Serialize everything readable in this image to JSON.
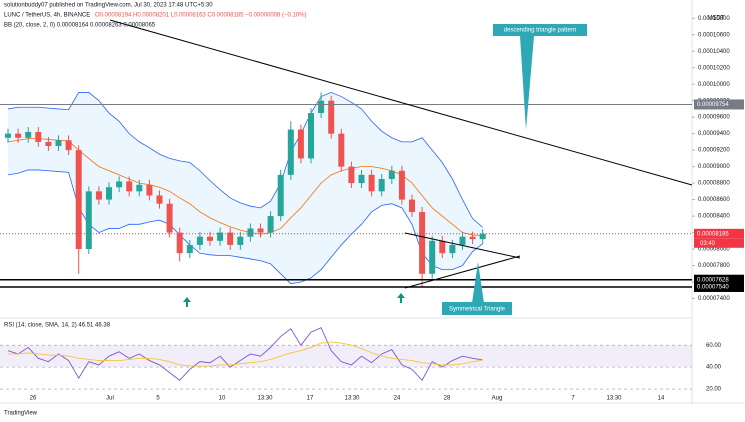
{
  "header": {
    "published": "solutionbuddy07 published on TradingView.com, Jul 30, 2023 17:48 UTC+5:30",
    "brand": "TradingView"
  },
  "chart_data": [
    {
      "type": "candlestick",
      "title": "LUNC / TetherUS, 4h, BINANCE",
      "ohlc_label": "O0.00008194 H0.00008201 L0.00008163 C0.00008185 −0.00000008 (−0.10%)",
      "bb_legend": "BB (20, close, 2, 0) 0.00008164 0.00008263 0.00008065",
      "currency": "USDT",
      "countdown": "03:40",
      "up_color": "#26a69a",
      "down_color": "#ef5350",
      "open": [
        9.35e-05,
        9.4e-05,
        9.35e-05,
        9.42e-05,
        9.3e-05,
        9.25e-05,
        9.32e-05,
        9.2e-05,
        8e-05,
        8.7e-05,
        8.6e-05,
        8.75e-05,
        8.82e-05,
        8.7e-05,
        8.78e-05,
        8.65e-05,
        8.55e-05,
        8.2e-05,
        7.95e-05,
        8.05e-05,
        8.15e-05,
        8.1e-05,
        8.2e-05,
        8.05e-05,
        8.15e-05,
        8.25e-05,
        8.2e-05,
        8.4e-05,
        8.9e-05,
        9.45e-05,
        9.1e-05,
        9.65e-05,
        9.8e-05,
        9.4e-05,
        9e-05,
        8.8e-05,
        8.9e-05,
        8.7e-05,
        8.85e-05,
        8.95e-05,
        8.6e-05,
        8.45e-05,
        7.7e-05,
        8.1e-05,
        7.95e-05,
        8.05e-05,
        8.15e-05,
        8.12e-05
      ],
      "high": [
        9.46e-05,
        9.46e-05,
        9.48e-05,
        9.48e-05,
        9.36e-05,
        9.38e-05,
        9.38e-05,
        9.26e-05,
        8.76e-05,
        8.76e-05,
        8.81e-05,
        8.88e-05,
        8.88e-05,
        8.84e-05,
        8.84e-05,
        8.71e-05,
        8.61e-05,
        8.26e-05,
        8.11e-05,
        8.21e-05,
        8.21e-05,
        8.26e-05,
        8.26e-05,
        8.21e-05,
        8.31e-05,
        8.31e-05,
        8.46e-05,
        8.96e-05,
        9.55e-05,
        9.51e-05,
        9.71e-05,
        9.9e-05,
        9.86e-05,
        9.46e-05,
        9.06e-05,
        8.96e-05,
        8.96e-05,
        8.91e-05,
        9.01e-05,
        9.01e-05,
        8.66e-05,
        8.51e-05,
        8.16e-05,
        8.16e-05,
        8.11e-05,
        8.21e-05,
        8.21e-05,
        8.24e-05
      ],
      "low": [
        9.29e-05,
        9.29e-05,
        9.29e-05,
        9.24e-05,
        9.19e-05,
        9.19e-05,
        9.14e-05,
        7.7e-05,
        7.94e-05,
        8.54e-05,
        8.54e-05,
        8.69e-05,
        8.64e-05,
        8.64e-05,
        8.59e-05,
        8.49e-05,
        8.14e-05,
        7.85e-05,
        7.89e-05,
        7.99e-05,
        8.04e-05,
        8.04e-05,
        7.99e-05,
        7.99e-05,
        8.09e-05,
        8.14e-05,
        8.14e-05,
        8.34e-05,
        8.84e-05,
        9.04e-05,
        9.04e-05,
        9.59e-05,
        9.34e-05,
        8.94e-05,
        8.74e-05,
        8.74e-05,
        8.64e-05,
        8.64e-05,
        8.79e-05,
        8.54e-05,
        8.39e-05,
        7.54e-05,
        7.64e-05,
        7.89e-05,
        7.89e-05,
        7.99e-05,
        8.06e-05,
        8.06e-05
      ],
      "close": [
        9.4e-05,
        9.35e-05,
        9.42e-05,
        9.3e-05,
        9.25e-05,
        9.32e-05,
        9.2e-05,
        8e-05,
        8.7e-05,
        8.6e-05,
        8.75e-05,
        8.82e-05,
        8.7e-05,
        8.78e-05,
        8.65e-05,
        8.55e-05,
        8.2e-05,
        7.95e-05,
        8.05e-05,
        8.15e-05,
        8.1e-05,
        8.2e-05,
        8.05e-05,
        8.15e-05,
        8.25e-05,
        8.2e-05,
        8.4e-05,
        8.9e-05,
        9.45e-05,
        9.1e-05,
        9.65e-05,
        9.8e-05,
        9.4e-05,
        9e-05,
        8.8e-05,
        8.9e-05,
        8.7e-05,
        8.85e-05,
        8.95e-05,
        8.6e-05,
        8.45e-05,
        7.7e-05,
        8.1e-05,
        7.95e-05,
        8.05e-05,
        8.15e-05,
        8.12e-05,
        8.185e-05
      ],
      "bands": [
        {
          "color": "#ff6d00",
          "values": [
            9.3e-05,
            9.32e-05,
            9.34e-05,
            9.34e-05,
            9.33e-05,
            9.32e-05,
            9.31e-05,
            9.2e-05,
            9.1e-05,
            9e-05,
            8.95e-05,
            8.9e-05,
            8.85e-05,
            8.8e-05,
            8.78e-05,
            8.75e-05,
            8.7e-05,
            8.62e-05,
            8.55e-05,
            8.45e-05,
            8.38e-05,
            8.32e-05,
            8.27e-05,
            8.23e-05,
            8.2e-05,
            8.18e-05,
            8.2e-05,
            8.25e-05,
            8.38e-05,
            8.5e-05,
            8.65e-05,
            8.8e-05,
            8.9e-05,
            8.95e-05,
            8.98e-05,
            9e-05,
            9e-05,
            8.98e-05,
            8.95e-05,
            8.9e-05,
            8.8e-05,
            8.65e-05,
            8.5e-05,
            8.4e-05,
            8.3e-05,
            8.2e-05,
            8.17e-05,
            8.164e-05
          ]
        },
        {
          "color": "#2962ff",
          "values": [
            9.7e-05,
            9.72e-05,
            9.72e-05,
            9.72e-05,
            9.71e-05,
            9.7e-05,
            9.69e-05,
            9.9e-05,
            9.9e-05,
            9.8e-05,
            9.65e-05,
            9.55e-05,
            9.4e-05,
            9.3e-05,
            9.23e-05,
            9.15e-05,
            9.1e-05,
            9.07e-05,
            9.05e-05,
            8.95e-05,
            8.83e-05,
            8.72e-05,
            8.62e-05,
            8.56e-05,
            8.52e-05,
            8.5e-05,
            8.58e-05,
            8.8e-05,
            9.18e-05,
            9.4e-05,
            9.65e-05,
            9.85e-05,
            9.9e-05,
            9.85e-05,
            9.78e-05,
            9.7e-05,
            9.55e-05,
            9.43e-05,
            9.35e-05,
            9.3e-05,
            9.3e-05,
            9.35e-05,
            9.2e-05,
            9.05e-05,
            8.85e-05,
            8.6e-05,
            8.37e-05,
            8.263e-05
          ]
        },
        {
          "color": "#2962ff",
          "values": [
            8.9e-05,
            8.92e-05,
            8.96e-05,
            8.96e-05,
            8.95e-05,
            8.94e-05,
            8.93e-05,
            8.5e-05,
            8.3e-05,
            8.2e-05,
            8.25e-05,
            8.25e-05,
            8.3e-05,
            8.3e-05,
            8.33e-05,
            8.35e-05,
            8.3e-05,
            8.17e-05,
            8.05e-05,
            7.95e-05,
            7.93e-05,
            7.92e-05,
            7.92e-05,
            7.9e-05,
            7.88e-05,
            7.86e-05,
            7.82e-05,
            7.7e-05,
            7.58e-05,
            7.6e-05,
            7.65e-05,
            7.75e-05,
            7.9e-05,
            8.05e-05,
            8.18e-05,
            8.3e-05,
            8.45e-05,
            8.53e-05,
            8.55e-05,
            8.5e-05,
            8.3e-05,
            7.95e-05,
            7.8e-05,
            7.75e-05,
            7.75e-05,
            7.8e-05,
            7.97e-05,
            8.065e-05
          ]
        }
      ],
      "band_fill": "rgba(33,150,243,0.09)",
      "ylim": [
        7.2e-05,
        0.000109
      ],
      "yticks": [
        {
          "value": 7.4e-05,
          "label": "0.00007400"
        },
        {
          "value": 7.6e-05,
          "label": "0.00007600"
        },
        {
          "value": 7.8e-05,
          "label": "0.00007800"
        },
        {
          "value": 8e-05,
          "label": "0.00008000"
        },
        {
          "value": 8.2e-05,
          "label": "0.00008200"
        },
        {
          "value": 8.4e-05,
          "label": "0.00008400"
        },
        {
          "value": 8.6e-05,
          "label": "0.00008600"
        },
        {
          "value": 8.8e-05,
          "label": "0.00008800"
        },
        {
          "value": 9e-05,
          "label": "0.00009000"
        },
        {
          "value": 9.2e-05,
          "label": "0.00009200"
        },
        {
          "value": 9.4e-05,
          "label": "0.00009400"
        },
        {
          "value": 9.6e-05,
          "label": "0.00009600"
        },
        {
          "value": 9.8e-05,
          "label": "0.00009800"
        },
        {
          "value": 0.0001,
          "label": "0.00010000"
        },
        {
          "value": 0.000102,
          "label": "0.00010200"
        },
        {
          "value": 0.000104,
          "label": "0.00010400"
        },
        {
          "value": 0.000106,
          "label": "0.00010600"
        },
        {
          "value": 0.000108,
          "label": "0.00010800"
        }
      ],
      "levels": [
        {
          "value": 9.754e-05,
          "label": "0.00009754",
          "color": "#787b86"
        },
        {
          "value": 7.628e-05,
          "label": "0.00007628",
          "color": "#000000"
        },
        {
          "value": 7.54e-05,
          "label": "0.00007540",
          "color": "#000000"
        },
        {
          "value": 8.185e-05,
          "label": "0.00008185",
          "color": "#f23645"
        }
      ],
      "x_tick_labels": [
        "26",
        "Jul",
        "5",
        "10",
        "13:30",
        "17",
        "13:30",
        "24",
        "28",
        "Aug",
        "7",
        "13:30",
        "14"
      ],
      "annotations": [
        "descending triangle pattern",
        "Symmetrical Triangle"
      ]
    },
    {
      "type": "line",
      "title": "RSI (14, close, SMA, 14, 2) 46.51 46.38",
      "series": [
        {
          "name": "RSI",
          "color": "#7e57c2",
          "values": [
            55,
            52,
            58,
            48,
            45,
            52,
            46,
            30,
            45,
            42,
            50,
            54,
            48,
            52,
            46,
            42,
            35,
            28,
            38,
            45,
            44,
            50,
            40,
            46,
            52,
            50,
            58,
            68,
            75,
            60,
            72,
            76,
            55,
            45,
            42,
            50,
            44,
            52,
            56,
            42,
            38,
            28,
            45,
            40,
            46,
            50,
            48,
            46.51
          ]
        },
        {
          "name": "RSI-based MA",
          "color": "#f7c531",
          "values": [
            52,
            52,
            53,
            52,
            51,
            51,
            50,
            48,
            47,
            46,
            46,
            46,
            47,
            48,
            48,
            47,
            45,
            42,
            41,
            41,
            41,
            42,
            42,
            43,
            44,
            45,
            47,
            50,
            53,
            55,
            58,
            62,
            63,
            62,
            60,
            57,
            53,
            50,
            48,
            47,
            46,
            44,
            43,
            42,
            42,
            43,
            45,
            46.38
          ]
        }
      ],
      "ylim": [
        10,
        83
      ],
      "yticks": [
        {
          "value": 60,
          "label": "60.00"
        },
        {
          "value": 40,
          "label": "40.00"
        },
        {
          "value": 20,
          "label": "20.00"
        }
      ],
      "band_fill": "rgba(126,87,194,0.1)"
    }
  ]
}
